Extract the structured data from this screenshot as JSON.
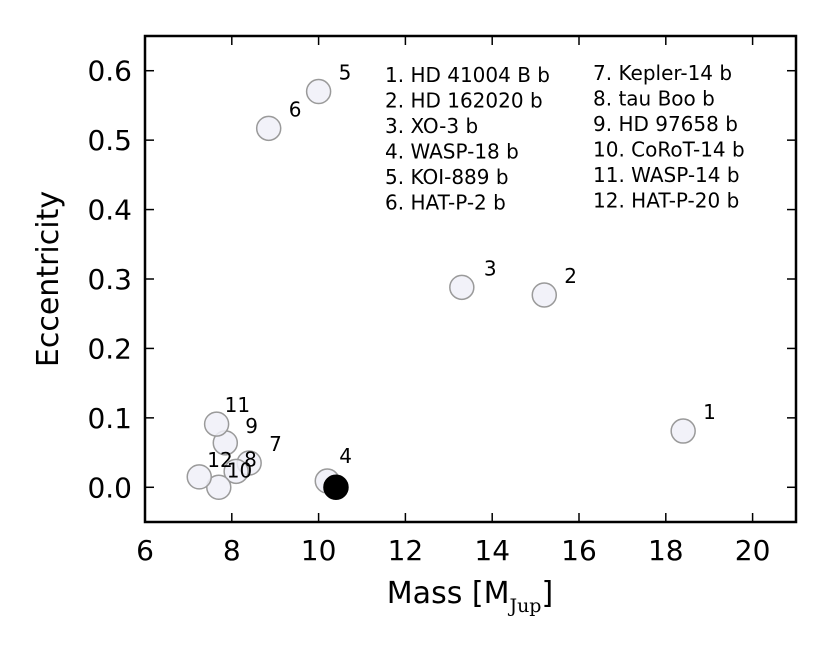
{
  "chart_data": {
    "type": "scatter",
    "title": "",
    "xlabel": "Mass [M",
    "xlabel_subscript": "Jup",
    "xlabel_close": "]",
    "ylabel": "Eccentricity",
    "xlim": [
      6,
      21
    ],
    "ylim": [
      -0.05,
      0.65
    ],
    "xticks": [
      6,
      8,
      10,
      12,
      14,
      16,
      18,
      20
    ],
    "xtick_labels": [
      "6",
      "8",
      "10",
      "12",
      "14",
      "16",
      "18",
      "20"
    ],
    "yticks": [
      0.0,
      0.1,
      0.2,
      0.3,
      0.4,
      0.5,
      0.6
    ],
    "ytick_labels": [
      "0.0",
      "0.1",
      "0.2",
      "0.3",
      "0.4",
      "0.5",
      "0.6"
    ],
    "grid": false,
    "legend_placement": "top-right",
    "marker_fill": "#f0f0f8",
    "marker_edge": "#9a9a9a",
    "highlight_fill": "#000000",
    "points": [
      {
        "label": "1",
        "x": 18.4,
        "y": 0.081,
        "highlight": false
      },
      {
        "label": "2",
        "x": 15.2,
        "y": 0.277,
        "highlight": false
      },
      {
        "label": "3",
        "x": 13.3,
        "y": 0.288,
        "highlight": false
      },
      {
        "label": "4",
        "x": 10.2,
        "y": 0.009,
        "highlight": false
      },
      {
        "label": "5",
        "x": 10.0,
        "y": 0.57,
        "highlight": false
      },
      {
        "label": "6",
        "x": 8.85,
        "y": 0.517,
        "highlight": false
      },
      {
        "label": "7",
        "x": 8.4,
        "y": 0.035,
        "highlight": false
      },
      {
        "label": "8",
        "x": 8.1,
        "y": 0.023,
        "highlight": false
      },
      {
        "label": "9",
        "x": 7.85,
        "y": 0.064,
        "highlight": false
      },
      {
        "label": "10",
        "x": 7.7,
        "y": 0.0,
        "highlight": false
      },
      {
        "label": "11",
        "x": 7.65,
        "y": 0.091,
        "highlight": false
      },
      {
        "label": "12",
        "x": 7.25,
        "y": 0.015,
        "highlight": false
      },
      {
        "label": "",
        "x": 10.4,
        "y": 0.0,
        "highlight": true
      }
    ],
    "legend_left": [
      "1. HD 41004 B b",
      "2. HD 162020 b",
      "3. XO-3 b",
      "4. WASP-18 b",
      "5. KOI-889 b",
      "6. HAT-P-2 b"
    ],
    "legend_right": [
      "7. Kepler-14 b",
      "8. tau Boo b",
      "9. HD 97658 b",
      "10. CoRoT-14 b",
      "11. WASP-14 b",
      "12. HAT-P-20 b"
    ]
  }
}
